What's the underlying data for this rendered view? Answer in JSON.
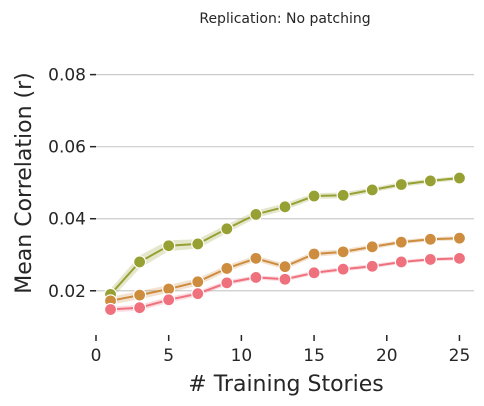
{
  "chart_data": {
    "type": "line",
    "title": "Replication: No patching",
    "xlabel": "# Training Stories",
    "ylabel": "Mean Correlation (r)",
    "xlim": [
      0,
      26
    ],
    "ylim": [
      0.0105,
      0.0885
    ],
    "xticks": [
      0,
      5,
      10,
      15,
      20,
      25
    ],
    "xtick_labels": [
      "0",
      "5",
      "10",
      "15",
      "20",
      "25"
    ],
    "yticks": [
      0.02,
      0.04,
      0.06,
      0.08
    ],
    "ytick_labels": [
      "0.02",
      "0.04",
      "0.06",
      "0.08"
    ],
    "grid": "y-only",
    "legend": "none",
    "x": [
      1,
      3,
      5,
      7,
      9,
      11,
      13,
      15,
      17,
      19,
      21,
      23,
      25
    ],
    "series": [
      {
        "color": "#97a032",
        "values": [
          0.019,
          0.028,
          0.0325,
          0.033,
          0.0372,
          0.0412,
          0.0433,
          0.0463,
          0.0465,
          0.048,
          0.0495,
          0.0505,
          0.0513
        ],
        "ci_halfwidth": [
          0.0015,
          0.0018,
          0.0015,
          0.0013,
          0.0012,
          0.001,
          0.001,
          0.0008,
          0.0008,
          0.0007,
          0.0007,
          0.0006,
          0.0006
        ]
      },
      {
        "color": "#cd8c3e",
        "values": [
          0.0172,
          0.0188,
          0.0205,
          0.0225,
          0.0262,
          0.029,
          0.0267,
          0.0302,
          0.0308,
          0.0322,
          0.0335,
          0.0343,
          0.0346
        ],
        "ci_halfwidth": [
          0.0011,
          0.0011,
          0.0011,
          0.001,
          0.0009,
          0.0008,
          0.0008,
          0.0008,
          0.0007,
          0.0007,
          0.0006,
          0.0006,
          0.0006
        ]
      },
      {
        "color": "#f0717e",
        "values": [
          0.0148,
          0.0153,
          0.0175,
          0.0192,
          0.0222,
          0.0237,
          0.0232,
          0.025,
          0.026,
          0.0268,
          0.028,
          0.0287,
          0.029
        ],
        "ci_halfwidth": [
          0.0008,
          0.0008,
          0.0008,
          0.0007,
          0.0007,
          0.0006,
          0.0006,
          0.0006,
          0.0006,
          0.0006,
          0.0005,
          0.0005,
          0.0005
        ]
      }
    ]
  }
}
